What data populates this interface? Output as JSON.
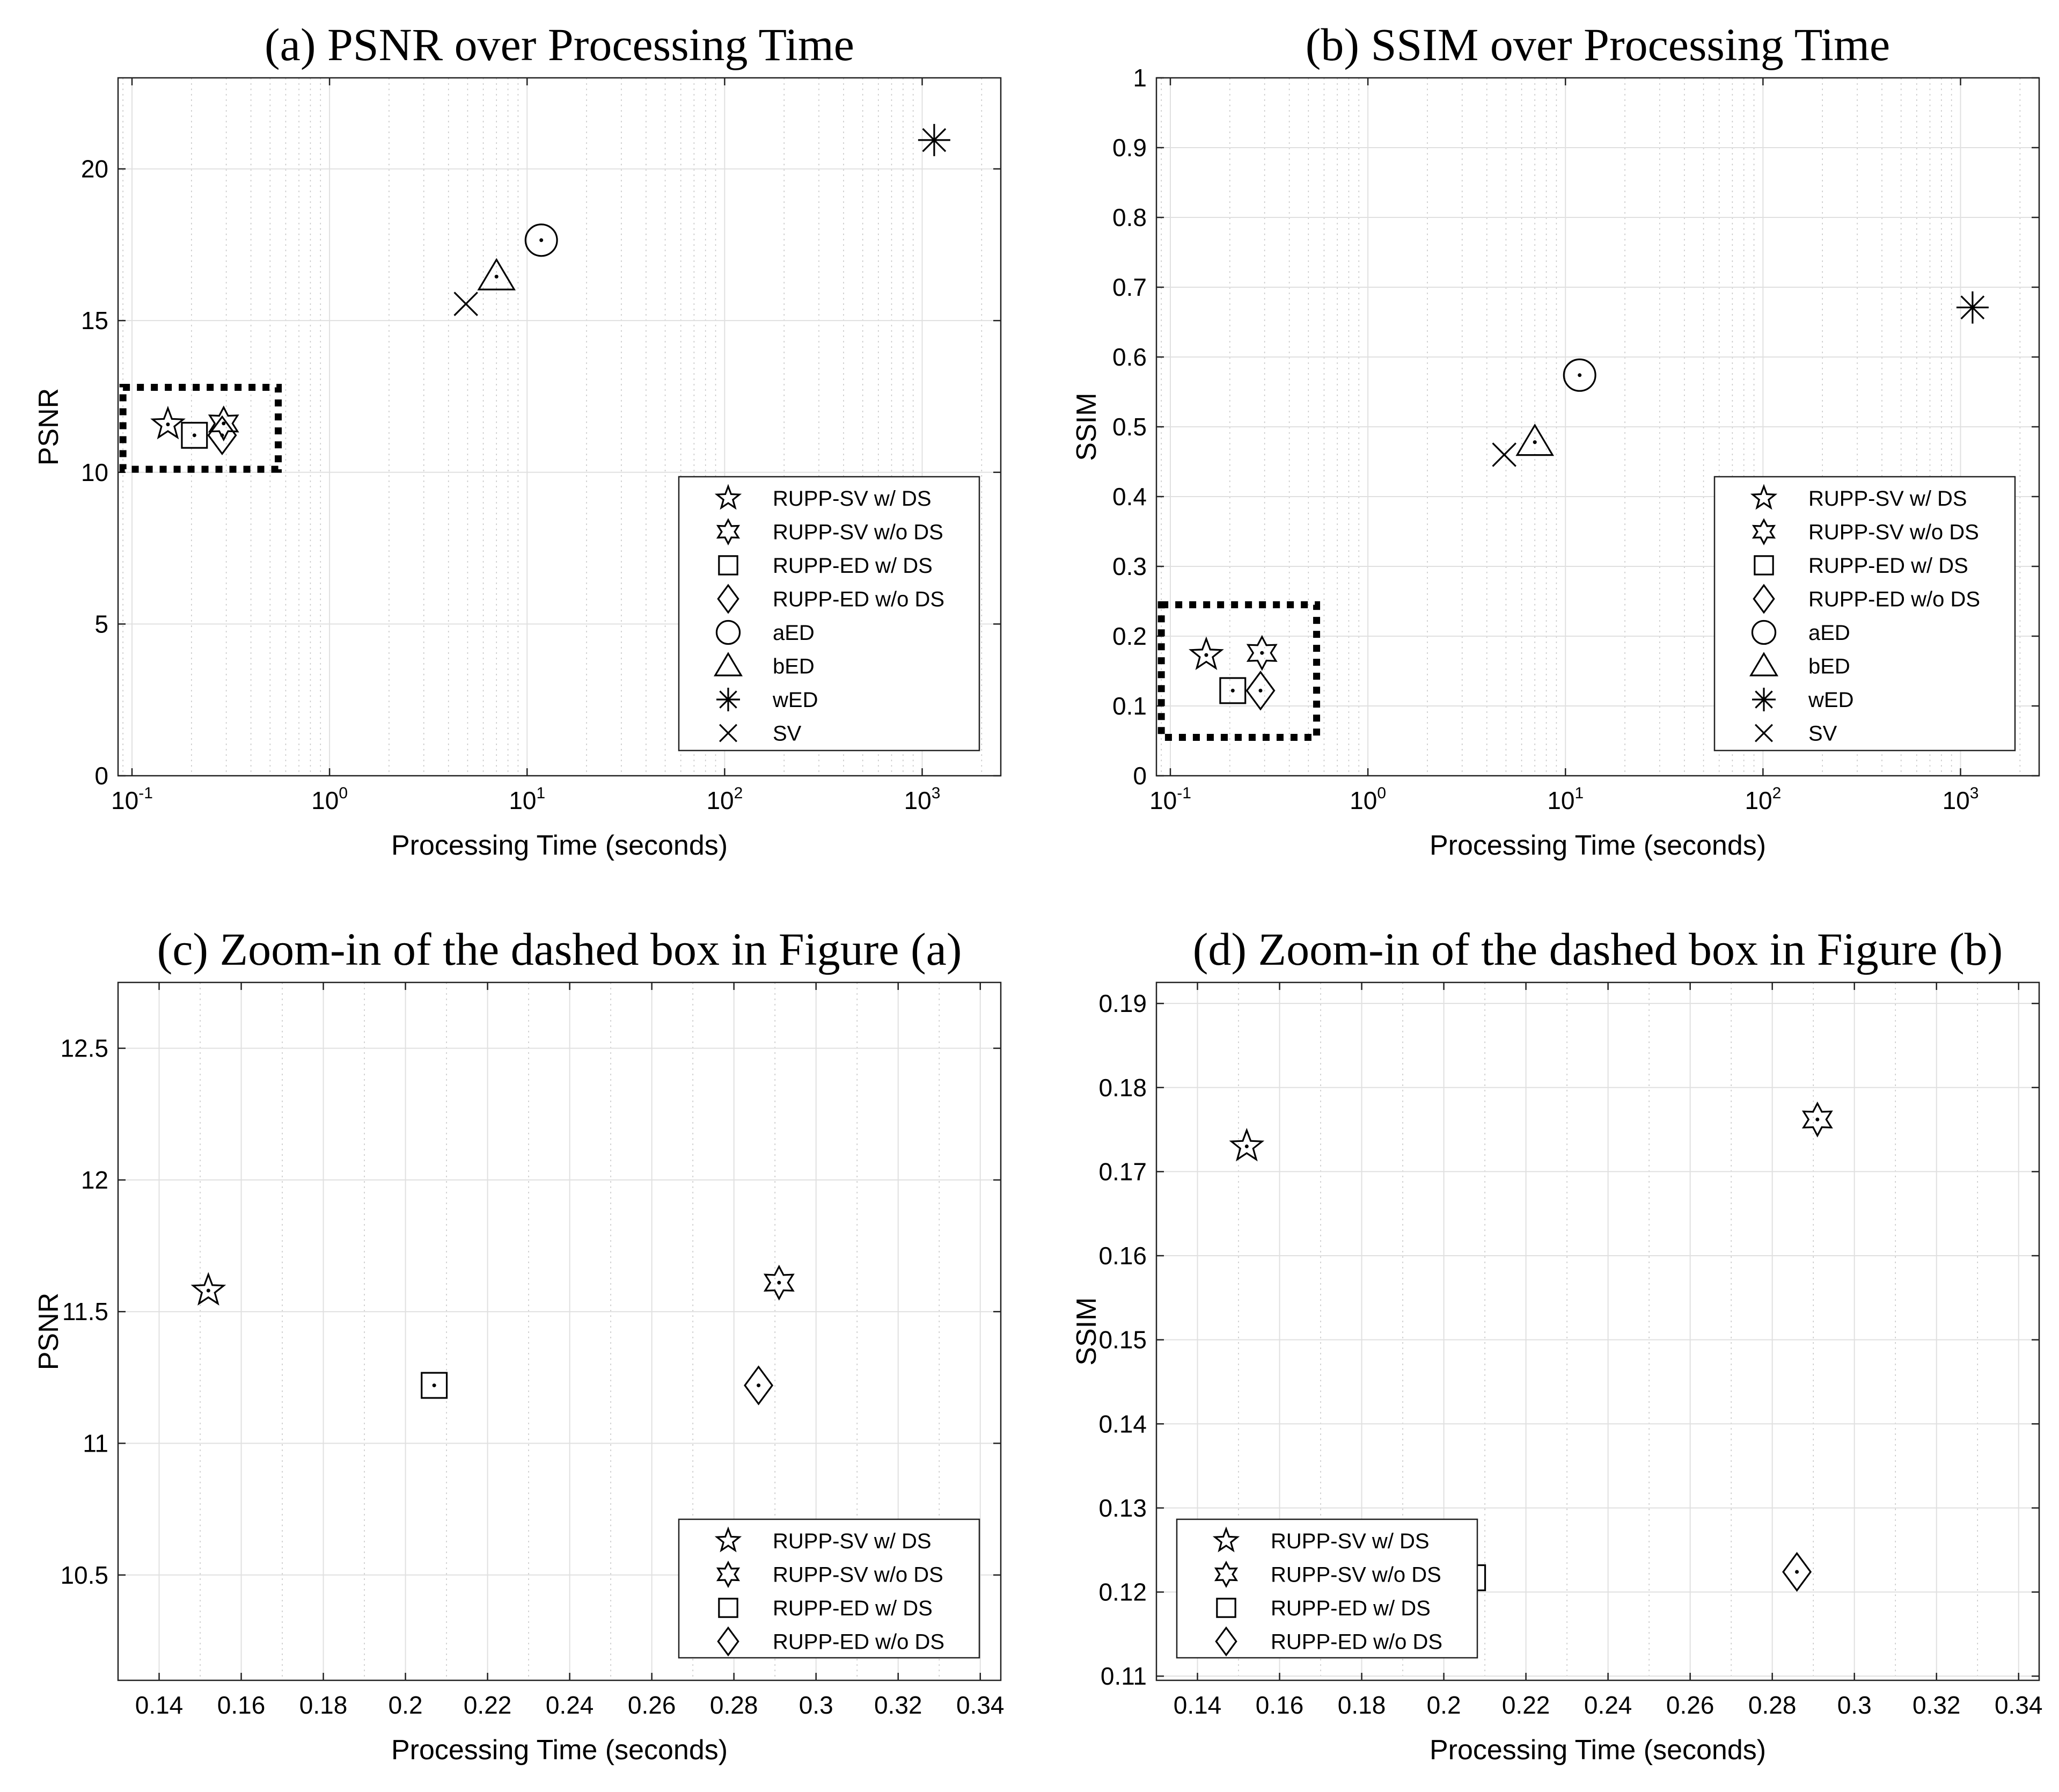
{
  "chart_data": [
    {
      "type": "scatter",
      "title": "(a) PSNR over Processing Time",
      "xlabel": "Processing Time (seconds)",
      "ylabel": "PSNR",
      "xscale": "log",
      "xlim": [
        0.085,
        2500
      ],
      "ylim": [
        0,
        23
      ],
      "x_ticks": [
        0.1,
        1,
        10,
        100,
        1000
      ],
      "x_tick_labels": [
        [
          "10",
          "-1"
        ],
        [
          "10",
          "0"
        ],
        [
          "10",
          "1"
        ],
        [
          "10",
          "2"
        ],
        [
          "10",
          "3"
        ]
      ],
      "y_ticks": [
        0,
        5,
        10,
        15,
        20
      ],
      "y_tick_labels": [
        "0",
        "5",
        "10",
        "15",
        "20"
      ],
      "grid": true,
      "legend_placement": "bottom-right",
      "highlight_box": {
        "x": [
          0.09,
          0.55
        ],
        "y": [
          10.1,
          12.8
        ],
        "style": "dotted"
      },
      "series": [
        {
          "name": "RUPP-SV w/ DS",
          "marker": "star5",
          "x": [
            0.152
          ],
          "y": [
            11.58
          ]
        },
        {
          "name": "RUPP-SV w/o DS",
          "marker": "star6",
          "x": [
            0.291
          ],
          "y": [
            11.61
          ]
        },
        {
          "name": "RUPP-ED w/ DS",
          "marker": "square",
          "x": [
            0.207
          ],
          "y": [
            11.22
          ]
        },
        {
          "name": "RUPP-ED w/o DS",
          "marker": "diamond",
          "x": [
            0.286
          ],
          "y": [
            11.22
          ]
        },
        {
          "name": "aED",
          "marker": "circle",
          "x": [
            11.8
          ],
          "y": [
            17.65
          ]
        },
        {
          "name": "bED",
          "marker": "triangle",
          "x": [
            7.0
          ],
          "y": [
            16.45
          ]
        },
        {
          "name": "wED",
          "marker": "asterisk",
          "x": [
            1150
          ],
          "y": [
            20.95
          ]
        },
        {
          "name": "SV",
          "marker": "cross",
          "x": [
            4.9
          ],
          "y": [
            15.55
          ]
        }
      ]
    },
    {
      "type": "scatter",
      "title": "(b) SSIM over Processing Time",
      "xlabel": "Processing Time (seconds)",
      "ylabel": "SSIM",
      "xscale": "log",
      "xlim": [
        0.085,
        2500
      ],
      "ylim": [
        0,
        1
      ],
      "x_ticks": [
        0.1,
        1,
        10,
        100,
        1000
      ],
      "x_tick_labels": [
        [
          "10",
          "-1"
        ],
        [
          "10",
          "0"
        ],
        [
          "10",
          "1"
        ],
        [
          "10",
          "2"
        ],
        [
          "10",
          "3"
        ]
      ],
      "y_ticks": [
        0,
        0.1,
        0.2,
        0.3,
        0.4,
        0.5,
        0.6,
        0.7,
        0.8,
        0.9,
        1
      ],
      "y_tick_labels": [
        "0",
        "0.1",
        "0.2",
        "0.3",
        "0.4",
        "0.5",
        "0.6",
        "0.7",
        "0.8",
        "0.9",
        "1"
      ],
      "grid": true,
      "legend_placement": "bottom-right",
      "highlight_box": {
        "x": [
          0.09,
          0.55
        ],
        "y": [
          0.055,
          0.245
        ],
        "style": "dotted"
      },
      "series": [
        {
          "name": "RUPP-SV w/ DS",
          "marker": "star5",
          "x": [
            0.152
          ],
          "y": [
            0.173
          ]
        },
        {
          "name": "RUPP-SV w/o DS",
          "marker": "star6",
          "x": [
            0.291
          ],
          "y": [
            0.176
          ]
        },
        {
          "name": "RUPP-ED w/ DS",
          "marker": "square",
          "x": [
            0.207
          ],
          "y": [
            0.122
          ]
        },
        {
          "name": "RUPP-ED w/o DS",
          "marker": "diamond",
          "x": [
            0.286
          ],
          "y": [
            0.122
          ]
        },
        {
          "name": "aED",
          "marker": "circle",
          "x": [
            11.8
          ],
          "y": [
            0.574
          ]
        },
        {
          "name": "bED",
          "marker": "triangle",
          "x": [
            7.0
          ],
          "y": [
            0.478
          ]
        },
        {
          "name": "wED",
          "marker": "asterisk",
          "x": [
            1150
          ],
          "y": [
            0.671
          ]
        },
        {
          "name": "SV",
          "marker": "cross",
          "x": [
            4.9
          ],
          "y": [
            0.46
          ]
        }
      ]
    },
    {
      "type": "scatter",
      "title": "(c) Zoom-in of the dashed box in Figure (a)",
      "xlabel": "Processing Time (seconds)",
      "ylabel": "PSNR",
      "xscale": "linear",
      "xlim": [
        0.13,
        0.345
      ],
      "ylim": [
        10.1,
        12.75
      ],
      "x_ticks": [
        0.14,
        0.16,
        0.18,
        0.2,
        0.22,
        0.24,
        0.26,
        0.28,
        0.3,
        0.32,
        0.34
      ],
      "x_tick_labels": [
        "0.14",
        "0.16",
        "0.18",
        "0.2",
        "0.22",
        "0.24",
        "0.26",
        "0.28",
        "0.3",
        "0.32",
        "0.34"
      ],
      "y_ticks": [
        10.5,
        11,
        11.5,
        12,
        12.5
      ],
      "y_tick_labels": [
        "10.5",
        "11",
        "11.5",
        "12",
        "12.5"
      ],
      "grid": true,
      "legend_placement": "bottom-right",
      "series": [
        {
          "name": "RUPP-SV w/ DS",
          "marker": "star5",
          "x": [
            0.152
          ],
          "y": [
            11.58
          ]
        },
        {
          "name": "RUPP-SV w/o DS",
          "marker": "star6",
          "x": [
            0.291
          ],
          "y": [
            11.61
          ]
        },
        {
          "name": "RUPP-ED w/ DS",
          "marker": "square",
          "x": [
            0.207
          ],
          "y": [
            11.22
          ]
        },
        {
          "name": "RUPP-ED w/o DS",
          "marker": "diamond",
          "x": [
            0.286
          ],
          "y": [
            11.22
          ]
        }
      ]
    },
    {
      "type": "scatter",
      "title": "(d) Zoom-in of the dashed box in Figure (b)",
      "xlabel": "Processing Time (seconds)",
      "ylabel": "SSIM",
      "xscale": "linear",
      "xlim": [
        0.13,
        0.345
      ],
      "ylim": [
        0.1095,
        0.1925
      ],
      "x_ticks": [
        0.14,
        0.16,
        0.18,
        0.2,
        0.22,
        0.24,
        0.26,
        0.28,
        0.3,
        0.32,
        0.34
      ],
      "x_tick_labels": [
        "0.14",
        "0.16",
        "0.18",
        "0.2",
        "0.22",
        "0.24",
        "0.26",
        "0.28",
        "0.3",
        "0.32",
        "0.34"
      ],
      "y_ticks": [
        0.11,
        0.12,
        0.13,
        0.14,
        0.15,
        0.16,
        0.17,
        0.18,
        0.19
      ],
      "y_tick_labels": [
        "0.11",
        "0.12",
        "0.13",
        "0.14",
        "0.15",
        "0.16",
        "0.17",
        "0.18",
        "0.19"
      ],
      "grid": true,
      "legend_placement": "bottom-left",
      "series": [
        {
          "name": "RUPP-SV w/ DS",
          "marker": "star5",
          "x": [
            0.152
          ],
          "y": [
            0.173
          ]
        },
        {
          "name": "RUPP-SV w/o DS",
          "marker": "star6",
          "x": [
            0.291
          ],
          "y": [
            0.1762
          ]
        },
        {
          "name": "RUPP-ED w/ DS",
          "marker": "square",
          "x": [
            0.207
          ],
          "y": [
            0.1217
          ]
        },
        {
          "name": "RUPP-ED w/o DS",
          "marker": "diamond",
          "x": [
            0.286
          ],
          "y": [
            0.1224
          ]
        }
      ]
    }
  ]
}
